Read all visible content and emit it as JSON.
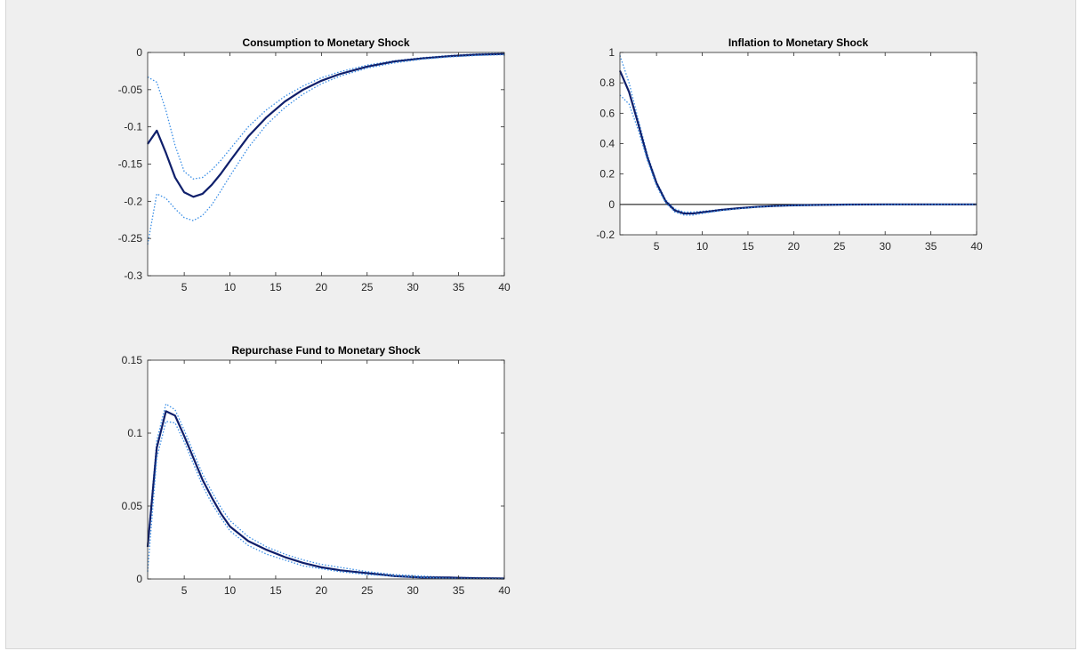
{
  "colors": {
    "background": "#efefef",
    "axes_background": "#ffffff",
    "axis": "#262626",
    "main_line": "#0f1f6b",
    "band_line": "#3a8ee6",
    "zero_line": "#000000"
  },
  "chart_data": [
    {
      "type": "line",
      "title": "Consumption to Monetary Shock",
      "xlim": [
        1,
        40
      ],
      "ylim": [
        -0.3,
        0
      ],
      "xticks": [
        5,
        10,
        15,
        20,
        25,
        30,
        35,
        40
      ],
      "xtick_labels": [
        "5",
        "10",
        "15",
        "20",
        "25",
        "30",
        "35",
        "40"
      ],
      "yticks": [
        -0.3,
        -0.25,
        -0.2,
        -0.15,
        -0.1,
        -0.05,
        0
      ],
      "ytick_labels": [
        "-0.3",
        "-0.25",
        "-0.2",
        "-0.15",
        "-0.1",
        "-0.05",
        "0"
      ],
      "zero_line": false,
      "x": [
        1,
        2,
        3,
        4,
        5,
        6,
        7,
        8,
        9,
        10,
        12,
        14,
        16,
        18,
        20,
        22,
        25,
        28,
        31,
        34,
        37,
        40
      ],
      "series": [
        {
          "role": "upper",
          "values": [
            -0.033,
            -0.04,
            -0.078,
            -0.125,
            -0.16,
            -0.17,
            -0.168,
            -0.158,
            -0.145,
            -0.13,
            -0.1,
            -0.077,
            -0.059,
            -0.045,
            -0.034,
            -0.026,
            -0.017,
            -0.011,
            -0.007,
            -0.004,
            -0.002,
            -0.001
          ]
        },
        {
          "role": "median",
          "values": [
            -0.123,
            -0.105,
            -0.135,
            -0.168,
            -0.188,
            -0.194,
            -0.19,
            -0.178,
            -0.163,
            -0.146,
            -0.113,
            -0.087,
            -0.066,
            -0.05,
            -0.038,
            -0.029,
            -0.019,
            -0.012,
            -0.008,
            -0.005,
            -0.003,
            -0.002
          ]
        },
        {
          "role": "lower",
          "values": [
            -0.258,
            -0.19,
            -0.196,
            -0.21,
            -0.222,
            -0.226,
            -0.219,
            -0.205,
            -0.186,
            -0.166,
            -0.128,
            -0.097,
            -0.074,
            -0.056,
            -0.042,
            -0.032,
            -0.021,
            -0.014,
            -0.009,
            -0.006,
            -0.004,
            -0.003
          ]
        }
      ]
    },
    {
      "type": "line",
      "title": "Inflation to Monetary Shock",
      "xlim": [
        1,
        40
      ],
      "ylim": [
        -0.2,
        1
      ],
      "xticks": [
        5,
        10,
        15,
        20,
        25,
        30,
        35,
        40
      ],
      "xtick_labels": [
        "5",
        "10",
        "15",
        "20",
        "25",
        "30",
        "35",
        "40"
      ],
      "yticks": [
        -0.2,
        0,
        0.2,
        0.4,
        0.6,
        0.8,
        1
      ],
      "ytick_labels": [
        "-0.2",
        "0",
        "0.2",
        "0.4",
        "0.6",
        "0.8",
        "1"
      ],
      "zero_line": true,
      "x": [
        1,
        2,
        3,
        4,
        5,
        6,
        7,
        8,
        9,
        10,
        11,
        12,
        14,
        16,
        18,
        20,
        23,
        26,
        30,
        35,
        40
      ],
      "series": [
        {
          "role": "upper",
          "values": [
            0.98,
            0.8,
            0.56,
            0.33,
            0.15,
            0.03,
            -0.03,
            -0.05,
            -0.05,
            -0.045,
            -0.04,
            -0.033,
            -0.022,
            -0.014,
            -0.008,
            -0.005,
            -0.002,
            -0.001,
            0,
            0,
            0
          ]
        },
        {
          "role": "median",
          "values": [
            0.88,
            0.74,
            0.53,
            0.31,
            0.14,
            0.02,
            -0.04,
            -0.06,
            -0.06,
            -0.052,
            -0.045,
            -0.037,
            -0.025,
            -0.016,
            -0.01,
            -0.006,
            -0.003,
            -0.001,
            0,
            0,
            0
          ]
        },
        {
          "role": "lower",
          "values": [
            0.72,
            0.66,
            0.49,
            0.29,
            0.12,
            0.01,
            -0.05,
            -0.07,
            -0.07,
            -0.06,
            -0.05,
            -0.041,
            -0.028,
            -0.018,
            -0.011,
            -0.007,
            -0.004,
            -0.002,
            -0.001,
            0,
            0
          ]
        }
      ]
    },
    {
      "type": "line",
      "title": "Repurchase Fund to Monetary Shock",
      "xlim": [
        1,
        40
      ],
      "ylim": [
        0,
        0.15
      ],
      "xticks": [
        5,
        10,
        15,
        20,
        25,
        30,
        35,
        40
      ],
      "xtick_labels": [
        "5",
        "10",
        "15",
        "20",
        "25",
        "30",
        "35",
        "40"
      ],
      "yticks": [
        0,
        0.05,
        0.1,
        0.15
      ],
      "ytick_labels": [
        "0",
        "0.05",
        "0.1",
        "0.15"
      ],
      "zero_line": false,
      "x": [
        1,
        2,
        3,
        4,
        5,
        6,
        7,
        8,
        9,
        10,
        12,
        14,
        16,
        18,
        20,
        22,
        25,
        28,
        31,
        34,
        37,
        40
      ],
      "series": [
        {
          "role": "upper",
          "values": [
            0.024,
            0.095,
            0.12,
            0.116,
            0.102,
            0.087,
            0.072,
            0.06,
            0.049,
            0.04,
            0.029,
            0.022,
            0.017,
            0.013,
            0.01,
            0.008,
            0.005,
            0.003,
            0.002,
            0.001,
            0.001,
            0.0005
          ]
        },
        {
          "role": "median",
          "values": [
            0.022,
            0.09,
            0.115,
            0.112,
            0.098,
            0.083,
            0.068,
            0.056,
            0.045,
            0.036,
            0.026,
            0.02,
            0.015,
            0.011,
            0.008,
            0.006,
            0.004,
            0.002,
            0.001,
            0.001,
            0.0005,
            0.0003
          ]
        },
        {
          "role": "lower",
          "values": [
            0.005,
            0.083,
            0.108,
            0.107,
            0.094,
            0.079,
            0.064,
            0.052,
            0.042,
            0.033,
            0.023,
            0.017,
            0.013,
            0.009,
            0.007,
            0.005,
            0.003,
            0.002,
            0.001,
            0.0005,
            0.0003,
            0.0002
          ]
        }
      ]
    }
  ]
}
